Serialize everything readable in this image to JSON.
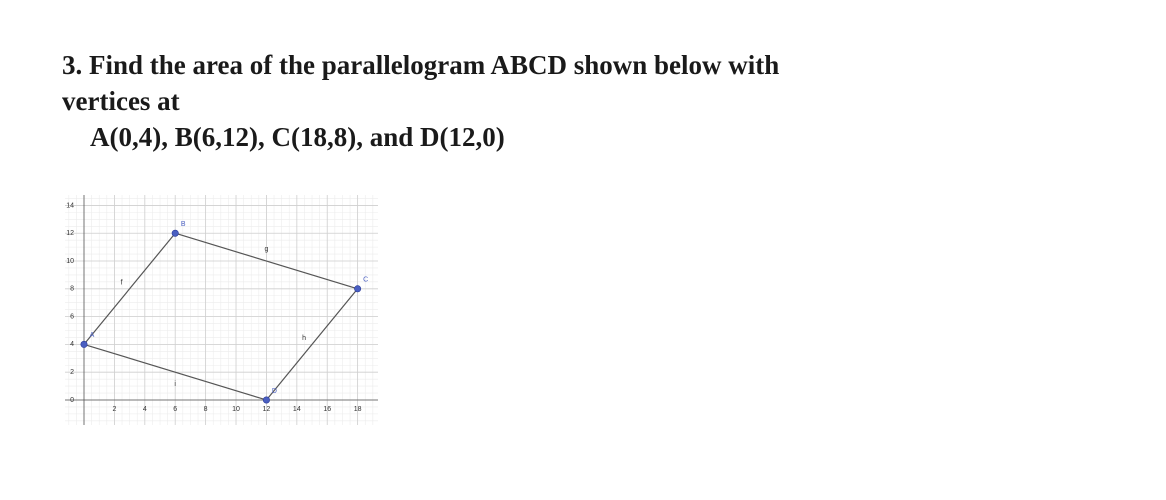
{
  "question": {
    "line1": "3. Find the area of the parallelogram ABCD shown below with",
    "line2": "vertices at",
    "line3": "A(0,4), B(6,12), C(18,8), and D(12,0)"
  },
  "figure": {
    "xlim": [
      -1.25,
      19.34
    ],
    "ylim": [
      -1.8,
      14.75
    ],
    "xticks": [
      2,
      4,
      6,
      8,
      10,
      12,
      14,
      16,
      18
    ],
    "yticks": [
      0,
      2,
      4,
      6,
      8,
      10,
      12,
      14
    ],
    "points": [
      {
        "label": "A",
        "x": 0,
        "y": 4
      },
      {
        "label": "B",
        "x": 6,
        "y": 12
      },
      {
        "label": "C",
        "x": 18,
        "y": 8
      },
      {
        "label": "D",
        "x": 12,
        "y": 0
      }
    ],
    "segment_labels": [
      "f",
      "g",
      "h",
      "i"
    ]
  }
}
